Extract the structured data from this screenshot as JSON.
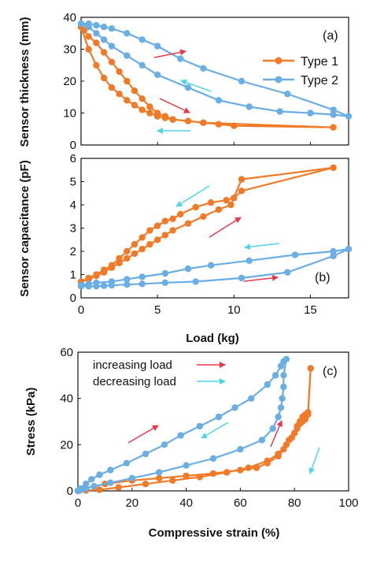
{
  "colors": {
    "type1": "#F07A28",
    "type2": "#6AAEE4",
    "red_arrow": "#E8394B",
    "cyan_arrow": "#4FD6E6",
    "axis": "#111111"
  },
  "chart_data": [
    {
      "panel_label": "(a)",
      "type": "line",
      "xlabel": "",
      "ylabel": "Sensor thickness (mm)",
      "xlim": [
        0,
        17.5
      ],
      "ylim": [
        0,
        40
      ],
      "x_ticks": [],
      "y_ticks": [
        "0",
        "10",
        "20",
        "30",
        "40"
      ],
      "legend": {
        "placement": "top-right",
        "entries": [
          "Type 1",
          "Type 2"
        ]
      },
      "series": [
        {
          "name": "Type 1",
          "color": "#F07A28",
          "x": [
            0,
            0.5,
            1,
            1.5,
            2,
            2.5,
            3,
            3.5,
            4,
            4.5,
            5,
            5.5,
            6,
            7,
            8,
            9,
            10,
            16.5,
            8,
            6,
            5.5,
            5,
            4.5,
            4,
            3.5,
            3,
            2.5,
            2,
            1.5,
            1,
            0.5,
            0.2,
            0
          ],
          "y": [
            37,
            30,
            25,
            21,
            18,
            16,
            14,
            12.5,
            11,
            10,
            9,
            8.5,
            8,
            7.5,
            7,
            6.5,
            6,
            5.5,
            7,
            8,
            9,
            10,
            12,
            14.5,
            17,
            20,
            23,
            26,
            29,
            32,
            34,
            36,
            37
          ]
        },
        {
          "name": "Type 2",
          "color": "#6AAEE4",
          "x": [
            0,
            0.5,
            1,
            1.5,
            2,
            3,
            4,
            5,
            6.5,
            8,
            10.5,
            13.5,
            16.5,
            17.5,
            16.5,
            15,
            13,
            11,
            9,
            7,
            5,
            4,
            3,
            2,
            1.5,
            1,
            0.5,
            0
          ],
          "y": [
            38,
            38,
            37.5,
            37,
            36.5,
            35,
            33,
            31,
            27,
            24,
            20,
            16,
            11,
            9,
            9.5,
            10,
            10.5,
            12,
            14,
            18,
            22,
            25,
            28,
            31,
            33,
            35,
            37,
            38
          ]
        }
      ],
      "annotations": [
        {
          "type": "arrow",
          "color": "red",
          "direction": "right"
        },
        {
          "type": "arrow",
          "color": "cyan",
          "direction": "left"
        },
        {
          "type": "arrow",
          "color": "red",
          "direction": "right"
        },
        {
          "type": "arrow",
          "color": "cyan",
          "direction": "left"
        }
      ]
    },
    {
      "panel_label": "(b)",
      "type": "line",
      "xlabel": "Load (kg)",
      "ylabel": "Sensor capacitance (pF)",
      "xlim": [
        0,
        17.5
      ],
      "ylim": [
        0,
        6
      ],
      "x_ticks": [
        "0",
        "5",
        "10",
        "15"
      ],
      "y_ticks": [
        "0",
        "1",
        "2",
        "3",
        "4",
        "5",
        "6"
      ],
      "series": [
        {
          "name": "Type 1",
          "color": "#F07A28",
          "x": [
            0,
            0.5,
            1,
            1.5,
            2,
            2.5,
            3,
            3.5,
            4,
            4.5,
            5,
            5.5,
            6,
            7,
            8,
            9,
            9.8,
            10.5,
            16.5,
            10.5,
            10,
            9.5,
            8.5,
            7.5,
            6.5,
            6,
            5.5,
            5,
            4.5,
            4,
            3.5,
            3,
            2.5,
            2,
            1.5,
            1,
            0.5,
            0
          ],
          "y": [
            0.7,
            0.8,
            0.95,
            1.1,
            1.3,
            1.5,
            1.7,
            1.9,
            2.1,
            2.3,
            2.5,
            2.7,
            2.9,
            3.2,
            3.5,
            3.8,
            4.0,
            5.1,
            5.6,
            4.6,
            4.3,
            4.2,
            4.1,
            3.9,
            3.6,
            3.4,
            3.3,
            3.1,
            2.9,
            2.6,
            2.3,
            2.0,
            1.7,
            1.4,
            1.2,
            1.0,
            0.85,
            0.7
          ]
        },
        {
          "name": "Type 2",
          "color": "#6AAEE4",
          "x": [
            0,
            0.5,
            1,
            1.5,
            2,
            3,
            4,
            5.5,
            7.5,
            10.5,
            13.5,
            16.5,
            17.5,
            16.5,
            14,
            11,
            8.5,
            7,
            5.5,
            4,
            3,
            2,
            1,
            0.5,
            0
          ],
          "y": [
            0.5,
            0.5,
            0.5,
            0.52,
            0.54,
            0.57,
            0.6,
            0.65,
            0.7,
            0.85,
            1.1,
            1.8,
            2.1,
            2.0,
            1.85,
            1.6,
            1.4,
            1.25,
            1.05,
            0.9,
            0.8,
            0.7,
            0.65,
            0.6,
            0.55
          ]
        }
      ],
      "annotations": [
        {
          "type": "arrow",
          "color": "cyan",
          "direction": "left"
        },
        {
          "type": "arrow",
          "color": "red",
          "direction": "right"
        },
        {
          "type": "arrow",
          "color": "cyan",
          "direction": "left"
        },
        {
          "type": "arrow",
          "color": "red",
          "direction": "right"
        }
      ]
    },
    {
      "panel_label": "(c)",
      "type": "line",
      "xlabel": "Compressive strain (%)",
      "ylabel": "Stress (kPa)",
      "xlim": [
        0,
        100
      ],
      "ylim": [
        0,
        60
      ],
      "x_ticks": [
        "0",
        "20",
        "40",
        "60",
        "80",
        "100"
      ],
      "y_ticks": [
        "0",
        "20",
        "40",
        "60"
      ],
      "notes": [
        "increasing load",
        "decreasing load"
      ],
      "series": [
        {
          "name": "Type 1",
          "color": "#F07A28",
          "x": [
            0,
            2,
            10,
            20,
            30,
            40,
            50,
            60,
            66,
            70,
            74,
            76,
            78,
            80,
            81,
            82,
            83,
            84,
            85,
            86,
            85,
            84,
            83,
            82,
            81,
            80,
            79,
            77,
            74,
            70,
            63,
            55,
            45,
            35,
            25,
            15,
            8,
            3,
            0
          ],
          "y": [
            0,
            1,
            3,
            4.5,
            5.5,
            6.5,
            7.5,
            9,
            10,
            12,
            15,
            18,
            22,
            25,
            28,
            30,
            32,
            33,
            34,
            53,
            33,
            31,
            30,
            29,
            27,
            25,
            23,
            20,
            16,
            13,
            10,
            8,
            6,
            4.5,
            3,
            1.5,
            0.5,
            0.2,
            0
          ]
        },
        {
          "name": "Type 2",
          "color": "#6AAEE4",
          "x": [
            0,
            1,
            3,
            5,
            8,
            12,
            18,
            25,
            32,
            38,
            45,
            52,
            58,
            64,
            70,
            73,
            75,
            76,
            77,
            76,
            76,
            75.5,
            75,
            74,
            72,
            68,
            60,
            50,
            40,
            30,
            20,
            12,
            6,
            3,
            1,
            0
          ],
          "y": [
            0,
            1,
            3,
            5,
            7,
            9,
            12,
            16,
            20,
            24,
            28,
            32,
            36,
            40,
            46,
            50,
            54,
            56,
            57,
            50,
            45,
            40,
            36,
            32,
            27,
            22,
            18,
            14,
            11,
            8,
            5.5,
            3.5,
            2,
            1,
            0.3,
            0
          ]
        }
      ],
      "annotations": [
        {
          "type": "arrow",
          "color": "red",
          "direction": "up-right"
        },
        {
          "type": "arrow",
          "color": "red",
          "direction": "up"
        },
        {
          "type": "arrow",
          "color": "cyan",
          "direction": "down-left"
        },
        {
          "type": "arrow",
          "color": "cyan",
          "direction": "down"
        }
      ]
    }
  ]
}
